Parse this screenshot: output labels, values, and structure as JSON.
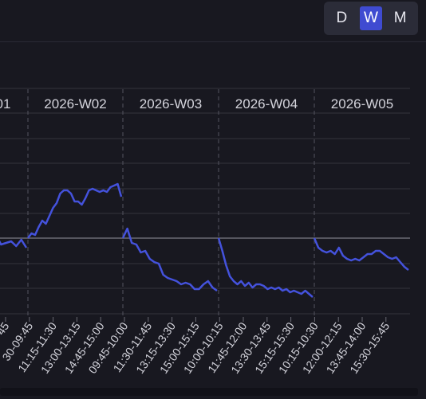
{
  "granularity": {
    "options": [
      "D",
      "W",
      "M"
    ],
    "active": "W"
  },
  "chart_data": {
    "type": "line",
    "week_labels": [
      "01",
      "2026-W02",
      "2026-W03",
      "2026-W04",
      "2026-W05"
    ],
    "x_tick_labels": [
      "45",
      "30-09:45",
      "11:15-11:30",
      "13:00-13:15",
      "14:45-15:00",
      "09:45-10:00",
      "11:30-11:45",
      "13:15-13:30",
      "15:00-15:15",
      "10:00-10:15",
      "11:45-12:00",
      "13:30-13:45",
      "15:15-15:30",
      "10:15-10:30",
      "12:00-12:15",
      "13:45-14:00",
      "15:30-15:45"
    ],
    "colors": {
      "line": "#4452dc",
      "reference": "#56565f",
      "grid": "#33333d",
      "background": "#181820"
    },
    "reference_line_value": 0,
    "segments": [
      {
        "week": "01",
        "values": [
          0.0,
          0.3,
          0.5,
          0.2,
          -0.4,
          -0.3,
          -0.2,
          -0.5,
          -0.1,
          -0.6
        ]
      },
      {
        "week": "2026-W02",
        "values": [
          0.0,
          0.3,
          0.2,
          0.7,
          1.1,
          0.9,
          1.4,
          1.9,
          2.2,
          2.8,
          3.0,
          3.0,
          2.8,
          2.3,
          2.3,
          2.1,
          2.5,
          3.0,
          3.1,
          3.0,
          2.9,
          3.0,
          2.9,
          3.2,
          3.3,
          3.4,
          2.6
        ]
      },
      {
        "week": "2026-W03",
        "values": [
          0.0,
          0.6,
          -0.3,
          -0.4,
          -0.9,
          -0.8,
          -1.3,
          -1.5,
          -1.6,
          -2.3,
          -2.5,
          -2.6,
          -2.7,
          -2.9,
          -2.8,
          -2.9,
          -3.2,
          -3.2,
          -2.9,
          -2.7,
          -3.1,
          -3.3
        ]
      },
      {
        "week": "2026-W04",
        "values": [
          0.0,
          -0.8,
          -1.7,
          -2.4,
          -2.7,
          -2.9,
          -2.7,
          -3.0,
          -2.8,
          -3.1,
          -2.9,
          -2.9,
          -3.0,
          -3.2,
          -3.1,
          -3.2,
          -3.1,
          -3.3,
          -3.2,
          -3.4,
          -3.3,
          -3.4,
          -3.5,
          -3.3,
          -3.5,
          -3.7
        ]
      },
      {
        "week": "2026-W05",
        "values": [
          0.0,
          -0.6,
          -0.8,
          -0.9,
          -0.8,
          -1.0,
          -0.6,
          -1.1,
          -1.3,
          -1.4,
          -1.3,
          -1.4,
          -1.2,
          -1.0,
          -1.0,
          -0.8,
          -0.8,
          -1.0,
          -1.2,
          -1.3,
          -1.2,
          -1.5,
          -1.8,
          -2.0
        ]
      }
    ],
    "grid": true
  }
}
